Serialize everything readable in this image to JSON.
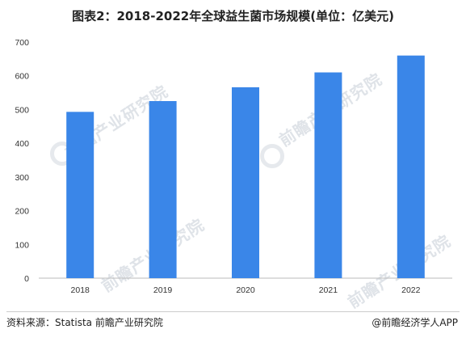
{
  "chart_data": {
    "type": "bar",
    "title": "图表2：2018-2022年全球益生菌市场规模(单位：亿美元)",
    "categories": [
      "2018",
      "2019",
      "2020",
      "2021",
      "2022"
    ],
    "values": [
      493,
      525,
      566,
      610,
      660
    ],
    "ylim": [
      0,
      700
    ],
    "yticks": [
      0,
      100,
      200,
      300,
      400,
      500,
      600,
      700
    ],
    "bar_color": "#3a86e8",
    "grid": false,
    "legend": "none"
  },
  "watermark": {
    "text": "前瞻产业研究院"
  },
  "footer": {
    "source": "资料来源：Statista 前瞻产业研究院",
    "brand": "@前瞻经济学人APP"
  }
}
